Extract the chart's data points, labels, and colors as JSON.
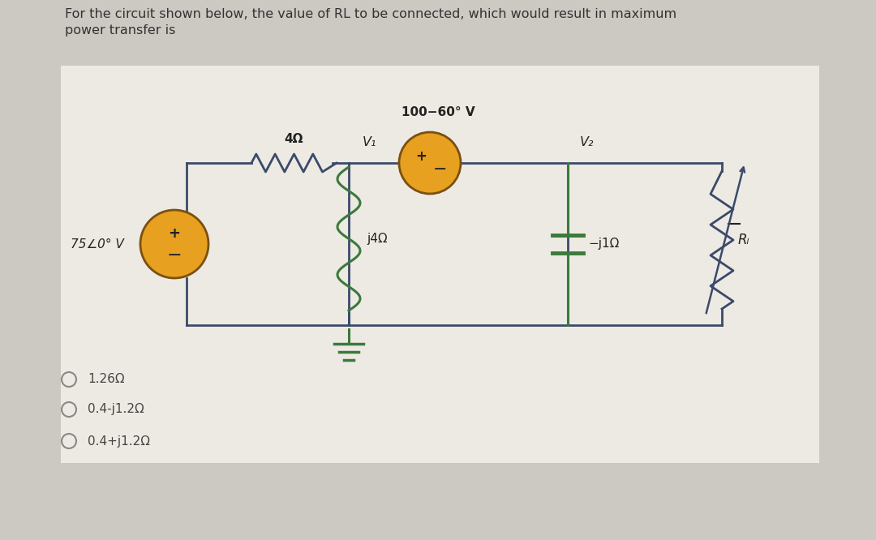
{
  "bg_color": "#ccc8c2",
  "panel_color": "#edeae3",
  "title_line1": "For the circuit shown below, the value of RL to be connected, which would result in maximum",
  "title_line2": "power transfer is",
  "title_fontsize": 11.5,
  "title_color": "#333333",
  "wire_color": "#3a4a6a",
  "vs1_label": "75∠0° V",
  "vs2_label": "100−60° V",
  "r_label": "4Ω",
  "v1_label": "V₁",
  "v2_label": "V₂",
  "ind_label": "j4Ω",
  "cap_label": "−j1Ω",
  "rl_label": "Rₗ",
  "options": [
    "1.26Ω",
    "0.4-j1.2Ω",
    "0.4+j1.2Ω"
  ],
  "option_fontsize": 11,
  "option_color": "#444444",
  "circle_color": "#e8a020",
  "circle_edge": "#7a5010",
  "ground_color": "#3a7a3a",
  "ind_color": "#3a7a3a",
  "cap_color": "#3a7a3a"
}
